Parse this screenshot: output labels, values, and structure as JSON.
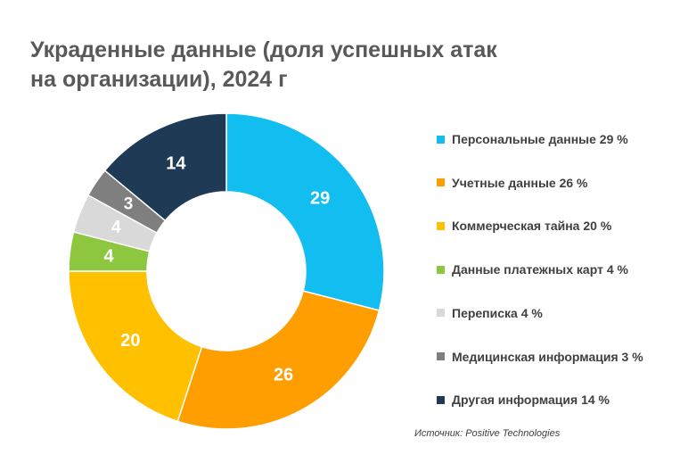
{
  "title_lines": [
    "Украденные данные (доля успешных атак",
    "на организации), 2024 г"
  ],
  "source": "Источник: Positive Technologies",
  "chart_data": {
    "type": "pie",
    "variant": "donut",
    "title": "Украденные данные (доля успешных атак на организации), 2024 г",
    "unit": "%",
    "legend_position": "right",
    "categories": [
      "Персональные данные",
      "Учетные данные",
      "Коммерческая тайна",
      "Данные платежных карт",
      "Переписка",
      "Медицинская информация",
      "Другая информация"
    ],
    "values": [
      29,
      26,
      20,
      4,
      4,
      3,
      14
    ],
    "colors": [
      "#12BEF0",
      "#FF9E00",
      "#FFC000",
      "#8DC63F",
      "#D9D9D9",
      "#7F7F7F",
      "#1F3A54"
    ],
    "legend_labels": [
      "Персональные данные 29 %",
      "Учетные данные 26 %",
      "Коммерческая тайна 20 %",
      "Данные платежных карт 4 %",
      "Переписка 4 %",
      "Медицинская информация 3 %",
      "Другая информация 14 %"
    ],
    "data_labels": [
      "29",
      "26",
      "20",
      "4",
      "4",
      "3",
      "14"
    ]
  }
}
